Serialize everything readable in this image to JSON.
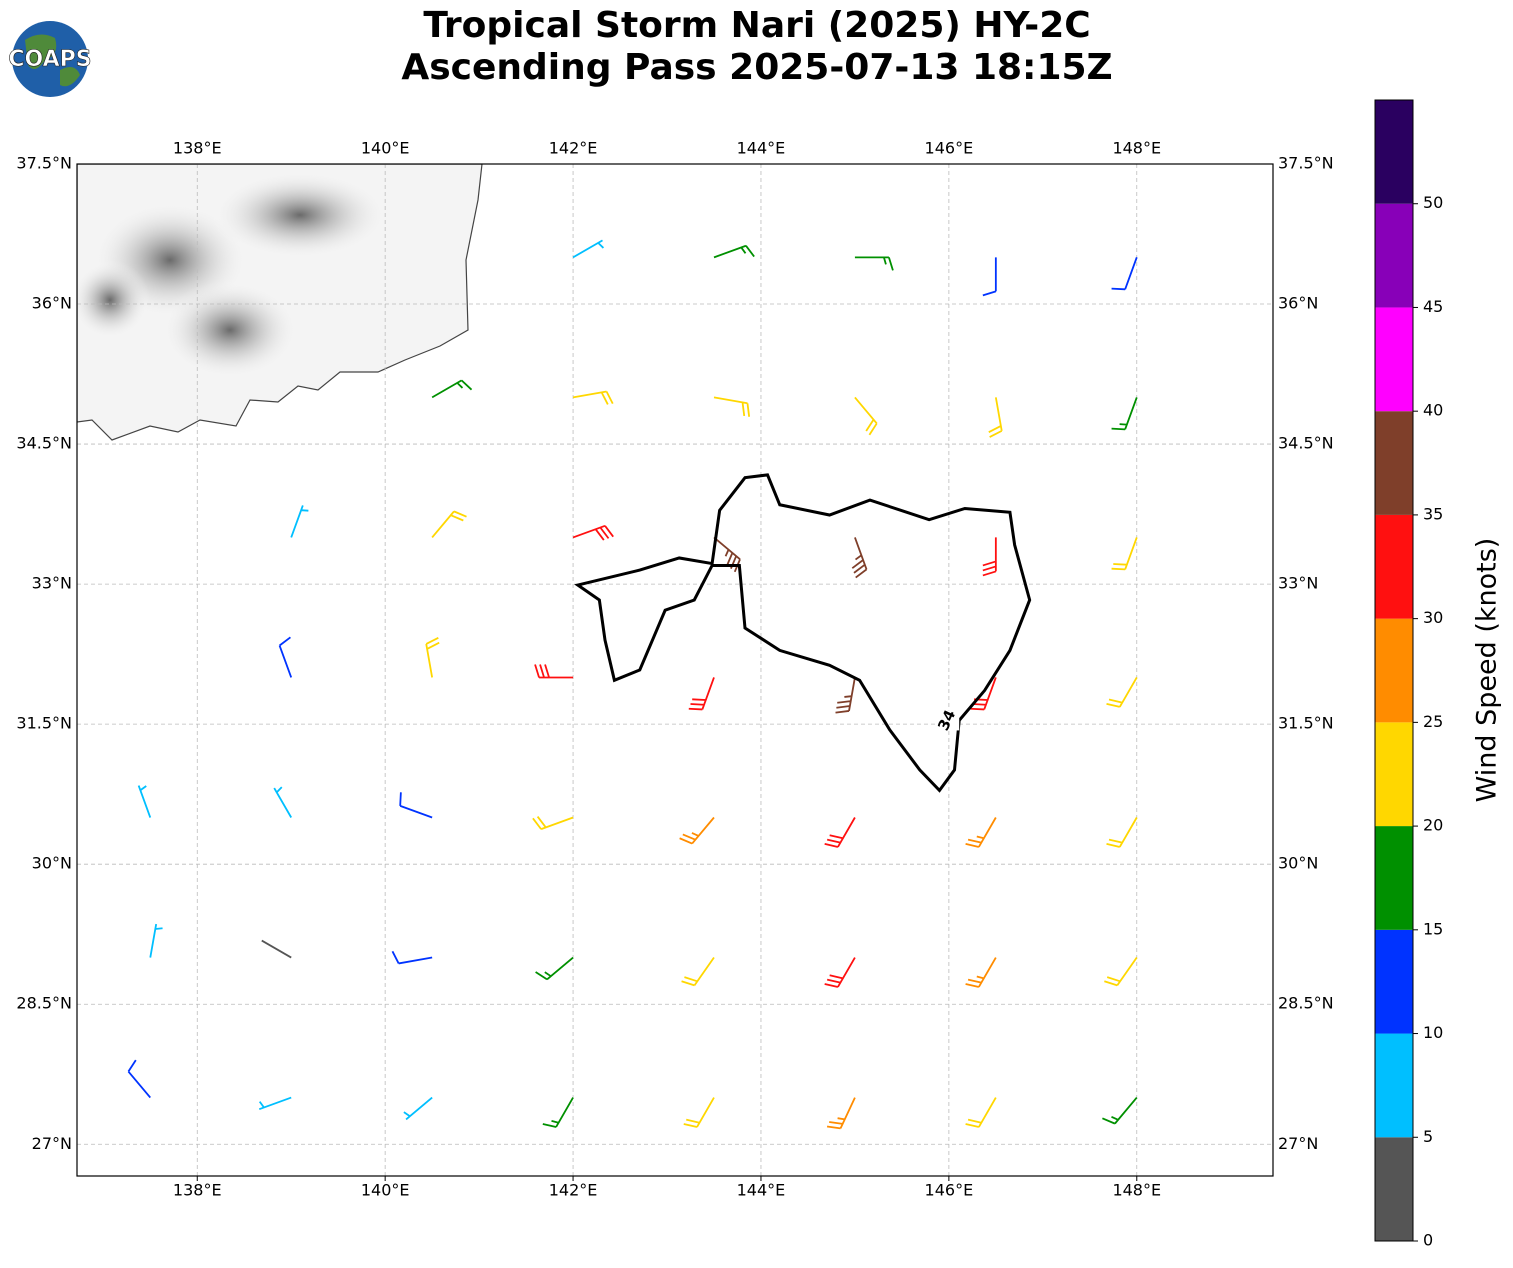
{
  "chart_data": {
    "type": "wind-barb-map",
    "logo_text": "COAPS",
    "title": "Tropical Storm Nari (2025) HY-2C",
    "subtitle": "Ascending Pass 2025-07-13 18:15Z",
    "xlim": [
      136.72,
      149.45
    ],
    "ylim": [
      26.66,
      37.5
    ],
    "xticks": [
      {
        "value": 138,
        "label": "138°E"
      },
      {
        "value": 140,
        "label": "140°E"
      },
      {
        "value": 142,
        "label": "142°E"
      },
      {
        "value": 144,
        "label": "144°E"
      },
      {
        "value": 146,
        "label": "146°E"
      },
      {
        "value": 148,
        "label": "148°E"
      }
    ],
    "yticks": [
      {
        "value": 27,
        "label": "27°N"
      },
      {
        "value": 28.5,
        "label": "28.5°N"
      },
      {
        "value": 30,
        "label": "30°N"
      },
      {
        "value": 31.5,
        "label": "31.5°N"
      },
      {
        "value": 33,
        "label": "33°N"
      },
      {
        "value": 34.5,
        "label": "34.5°N"
      },
      {
        "value": 36,
        "label": "36°N"
      },
      {
        "value": 37.5,
        "label": "37.5°N"
      }
    ],
    "grid": true,
    "barbs": {
      "lon": [
        142,
        143.5,
        145,
        146.5,
        148,
        140.5,
        142,
        143.5,
        145,
        146.5,
        148,
        139,
        140.5,
        142,
        143.5,
        145,
        146.5,
        148,
        139,
        140.5,
        142,
        143.5,
        145,
        146.5,
        148,
        137.5,
        139,
        140.5,
        142,
        143.5,
        145,
        146.5,
        148,
        137.5,
        139,
        140.5,
        142,
        143.5,
        145,
        146.5,
        148,
        137.5,
        139,
        140.5,
        142,
        143.5,
        145,
        146.5,
        148
      ],
      "lat": [
        36.5,
        36.5,
        36.5,
        36.5,
        36.5,
        35,
        35,
        35,
        35,
        35,
        35,
        33.5,
        33.5,
        33.5,
        33.5,
        33.5,
        33.5,
        33.5,
        32,
        32,
        32,
        32,
        32,
        32,
        32,
        30.5,
        30.5,
        30.5,
        30.5,
        30.5,
        30.5,
        30.5,
        30.5,
        29,
        29,
        29,
        29,
        29,
        29,
        29,
        29,
        27.5,
        27.5,
        27.5,
        27.5,
        27.5,
        27.5,
        27.5,
        27.5
      ],
      "speed": [
        8,
        17,
        17,
        12,
        12,
        17,
        22,
        23,
        23,
        22,
        15,
        8,
        24,
        32,
        37,
        37,
        30,
        22,
        12,
        22,
        30,
        33,
        36,
        32,
        23,
        7,
        9,
        13,
        23,
        27,
        32,
        28,
        22,
        8,
        4,
        12,
        18,
        24,
        31,
        27,
        22,
        11,
        8,
        9,
        16,
        23,
        27,
        22,
        18
      ],
      "direction": [
        60,
        70,
        90,
        180,
        200,
        60,
        80,
        100,
        140,
        170,
        200,
        20,
        40,
        70,
        130,
        160,
        180,
        200,
        340,
        350,
        270,
        200,
        190,
        200,
        210,
        340,
        330,
        290,
        250,
        220,
        210,
        210,
        210,
        10,
        300,
        260,
        230,
        215,
        210,
        210,
        215,
        320,
        250,
        230,
        210,
        210,
        205,
        210,
        220
      ]
    },
    "contour": {
      "level": 34,
      "color": "#000000",
      "lon": [
        142.05,
        142.71,
        143.13,
        143.48,
        143.56,
        143.83,
        144.07,
        144.2,
        144.73,
        145.16,
        145.79,
        146.17,
        146.65,
        146.7,
        146.86,
        146.65,
        146.38,
        146.11,
        146.06,
        145.9,
        145.69,
        145.37,
        145.05,
        144.73,
        144.2,
        143.83,
        143.77,
        143.48,
        143.29,
        142.98,
        142.71,
        142.44,
        142.34,
        142.28
      ],
      "lat": [
        32.99,
        33.15,
        33.28,
        33.22,
        33.79,
        34.14,
        34.17,
        33.85,
        33.74,
        33.9,
        33.69,
        33.81,
        33.77,
        33.42,
        32.83,
        32.29,
        31.86,
        31.54,
        31.01,
        30.79,
        31.01,
        31.44,
        31.97,
        32.13,
        32.29,
        32.53,
        33.2,
        33.2,
        32.83,
        32.72,
        32.08,
        31.97,
        32.4,
        32.83
      ]
    },
    "colorbar": {
      "label": "Wind Speed (knots)",
      "clim": [
        0,
        55
      ],
      "ticks": [
        0,
        5,
        10,
        15,
        20,
        25,
        30,
        35,
        40,
        45,
        50
      ],
      "colors": [
        "#555555",
        "#00bfff",
        "#0033ff",
        "#009000",
        "#ffd700",
        "#ff8c00",
        "#ff1010",
        "#7f3f2a",
        "#ff00ff",
        "#8800b8",
        "#2a0060"
      ]
    }
  }
}
